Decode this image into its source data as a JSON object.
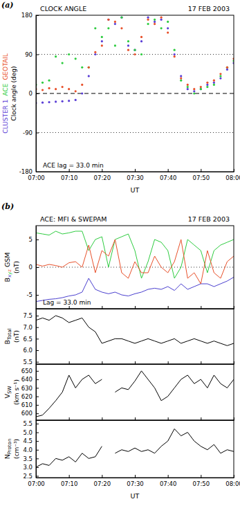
{
  "chart_data": [
    {
      "type": "scatter",
      "panel_label": "(a)",
      "title": "CLOCK ANGLE",
      "subtitle": "17 FEB 2003",
      "ylabel": "Clock angle (deg)",
      "xlabel": "UT",
      "legend": "left",
      "grid": true,
      "annotations": [
        "ACE lag = 33.0 min"
      ],
      "x": [
        0,
        2,
        4,
        6,
        8,
        10,
        12,
        14,
        16,
        18,
        20,
        22,
        24,
        26,
        28,
        30,
        32,
        34,
        36,
        38,
        40,
        42,
        44,
        46,
        48,
        50,
        52,
        54,
        56,
        58,
        60
      ],
      "xlim": [
        0,
        60
      ],
      "xticks": [
        {
          "value": 0,
          "label": "07:00"
        },
        {
          "value": 10,
          "label": "07:10"
        },
        {
          "value": 20,
          "label": "07:20"
        },
        {
          "value": 30,
          "label": "07:30"
        },
        {
          "value": 40,
          "label": "07:40"
        },
        {
          "value": 50,
          "label": "07:50"
        },
        {
          "value": 60,
          "label": "08:00"
        }
      ],
      "ylim": [
        -180,
        180
      ],
      "yticks": [
        -180,
        -90,
        0,
        90,
        180
      ],
      "series": [
        {
          "name": "CLUSTER 1",
          "color": "#5b3fd6",
          "marker": "dot",
          "values": [
            -22,
            -21,
            -20,
            -19,
            -18,
            -17,
            -15,
            0,
            40,
            90,
            120,
            170,
            160,
            175,
            110,
            100,
            120,
            175,
            165,
            170,
            150,
            90,
            40,
            10,
            5,
            10,
            20,
            25,
            35,
            55,
            70
          ]
        },
        {
          "name": "ACE",
          "color": "#2ecc40",
          "marker": "dot",
          "values": [
            20,
            25,
            30,
            85,
            70,
            90,
            80,
            60,
            60,
            150,
            130,
            150,
            110,
            175,
            120,
            100,
            90,
            160,
            170,
            150,
            165,
            100,
            30,
            15,
            0,
            10,
            15,
            20,
            40,
            60,
            75
          ]
        },
        {
          "name": "GEOTAIL",
          "color": "#e8502a",
          "marker": "dot",
          "values": [
            10,
            8,
            12,
            10,
            15,
            10,
            5,
            20,
            60,
            95,
            110,
            170,
            165,
            150,
            100,
            90,
            130,
            170,
            160,
            175,
            140,
            85,
            35,
            20,
            10,
            15,
            25,
            30,
            45,
            60,
            80
          ]
        }
      ]
    },
    {
      "type": "line",
      "panel_label": "(b)",
      "title": "ACE: MFI & SWEPAM",
      "subtitle": "17 FEB 2003",
      "ylabel": {
        "symbol": "B",
        "suffix": "GSM",
        "unit": "(nT)"
      },
      "tick_labels": "y",
      "annotations": [
        "Lag = 33.0 min"
      ],
      "x": [
        0,
        2,
        4,
        6,
        8,
        10,
        12,
        14,
        16,
        18,
        20,
        22,
        24,
        26,
        28,
        30,
        32,
        34,
        36,
        38,
        40,
        42,
        44,
        46,
        48,
        50,
        52,
        54,
        56,
        58,
        60
      ],
      "xlim": [
        0,
        60
      ],
      "xticks": [
        {
          "value": 0,
          "label": "07:00"
        },
        {
          "value": 10,
          "label": "07:10"
        },
        {
          "value": 20,
          "label": "07:20"
        },
        {
          "value": 30,
          "label": "07:30"
        },
        {
          "value": 40,
          "label": "07:40"
        },
        {
          "value": 50,
          "label": "07:50"
        },
        {
          "value": 60,
          "label": "08:00"
        }
      ],
      "ylim": [
        -7.5,
        7.5
      ],
      "yticks": [
        -5,
        0,
        5
      ],
      "series": [
        {
          "name": "x",
          "color": "#4a3fcf",
          "values": [
            -6.2,
            -6,
            -5.8,
            -5.7,
            -5.5,
            -5.2,
            -5,
            -4.5,
            -2,
            -4,
            -4.5,
            -4.8,
            -4.5,
            -5,
            -5.2,
            -4.8,
            -4.5,
            -4,
            -3.8,
            -4,
            -3.5,
            -4.2,
            -3,
            -4,
            -3.5,
            -3,
            -3,
            -3.5,
            -3,
            -2.5,
            -1.8
          ]
        },
        {
          "name": "y",
          "color": "#2ecc40",
          "values": [
            6.2,
            6,
            5.8,
            6.5,
            6,
            6.2,
            6.5,
            6.5,
            3,
            5,
            5.5,
            0,
            5,
            5.5,
            6,
            3,
            -2,
            1,
            5,
            4.5,
            3,
            -2,
            0,
            5,
            4,
            3,
            -1,
            3,
            4,
            4.5,
            5
          ]
        },
        {
          "name": "z",
          "color": "#e8502a",
          "values": [
            0.5,
            0.2,
            0.5,
            0.3,
            0,
            0.8,
            1,
            0,
            4,
            -1,
            3,
            2,
            5,
            -1,
            -2,
            1,
            -1,
            -1,
            2,
            0,
            -1,
            1,
            5,
            -2,
            -1,
            -3,
            3,
            -1,
            -2,
            1,
            2
          ]
        }
      ]
    },
    {
      "type": "line",
      "ylabel": {
        "symbol": "B",
        "sub": "Total",
        "unit": "(nT)"
      },
      "tick_labels": "y",
      "x": [
        0,
        2,
        4,
        6,
        8,
        10,
        12,
        14,
        16,
        18,
        20,
        22,
        24,
        26,
        28,
        30,
        32,
        34,
        36,
        38,
        40,
        42,
        44,
        46,
        48,
        50,
        52,
        54,
        56,
        58,
        60
      ],
      "xlim": [
        0,
        60
      ],
      "xticks": [
        {
          "value": 0,
          "label": "07:00"
        },
        {
          "value": 10,
          "label": "07:10"
        },
        {
          "value": 20,
          "label": "07:20"
        },
        {
          "value": 30,
          "label": "07:30"
        },
        {
          "value": 40,
          "label": "07:40"
        },
        {
          "value": 50,
          "label": "07:50"
        },
        {
          "value": 60,
          "label": "08:00"
        }
      ],
      "ylim": [
        5.4,
        7.8
      ],
      "yticks": [
        5.5,
        {
          "value": 6,
          "label": "6.0"
        },
        6.5,
        {
          "value": 7,
          "label": "7.0"
        },
        7.5
      ],
      "series": [
        {
          "color": "#000000",
          "values": [
            7.3,
            7.4,
            7.3,
            7.5,
            7.4,
            7.2,
            7.3,
            7.4,
            7.0,
            6.8,
            6.3,
            6.4,
            6.5,
            6.5,
            6.4,
            6.3,
            6.4,
            6.5,
            6.4,
            6.3,
            6.4,
            6.5,
            6.3,
            6.4,
            6.5,
            6.4,
            6.3,
            6.4,
            6.3,
            6.2,
            6.3
          ]
        }
      ]
    },
    {
      "type": "line",
      "ylabel": {
        "symbol": "V",
        "sub": "SW",
        "unit": "(km s⁻¹)"
      },
      "tick_labels": "y",
      "x": [
        0,
        2,
        4,
        6,
        8,
        10,
        12,
        14,
        16,
        18,
        20,
        22,
        24,
        26,
        28,
        30,
        32,
        34,
        36,
        38,
        40,
        42,
        44,
        46,
        48,
        50,
        52,
        54,
        56,
        58,
        60
      ],
      "xlim": [
        0,
        60
      ],
      "xticks": [
        {
          "value": 0,
          "label": "07:00"
        },
        {
          "value": 10,
          "label": "07:10"
        },
        {
          "value": 20,
          "label": "07:20"
        },
        {
          "value": 30,
          "label": "07:30"
        },
        {
          "value": 40,
          "label": "07:40"
        },
        {
          "value": 50,
          "label": "07:50"
        },
        {
          "value": 60,
          "label": "08:00"
        }
      ],
      "ylim": [
        592,
        658
      ],
      "yticks": [
        600,
        610,
        620,
        630,
        640,
        650
      ],
      "series": [
        {
          "color": "#000000",
          "values": [
            596,
            598,
            606,
            615,
            625,
            645,
            630,
            640,
            645,
            635,
            640,
            null,
            625,
            630,
            628,
            638,
            650,
            640,
            630,
            615,
            620,
            630,
            640,
            645,
            635,
            640,
            630,
            645,
            635,
            630,
            640
          ]
        }
      ]
    },
    {
      "type": "line",
      "ylabel": {
        "symbol": "N",
        "sub": "Proton",
        "unit": "(cm⁻³)"
      },
      "xlabel": "UT",
      "x": [
        0,
        2,
        4,
        6,
        8,
        10,
        12,
        14,
        16,
        18,
        20,
        22,
        24,
        26,
        28,
        30,
        32,
        34,
        36,
        38,
        40,
        42,
        44,
        46,
        48,
        50,
        52,
        54,
        56,
        58,
        60
      ],
      "xlim": [
        0,
        60
      ],
      "xticks": [
        {
          "value": 0,
          "label": "07:00"
        },
        {
          "value": 10,
          "label": "07:10"
        },
        {
          "value": 20,
          "label": "07:20"
        },
        {
          "value": 30,
          "label": "07:30"
        },
        {
          "value": 40,
          "label": "07:40"
        },
        {
          "value": 50,
          "label": "07:50"
        },
        {
          "value": 60,
          "label": "08:00"
        }
      ],
      "ylim": [
        2.4,
        5.7
      ],
      "yticks": [
        2.5,
        {
          "value": 3,
          "label": "3.0"
        },
        3.5,
        {
          "value": 4,
          "label": "4.0"
        },
        4.5,
        {
          "value": 5,
          "label": "5.0"
        },
        5.5
      ],
      "series": [
        {
          "color": "#000000",
          "values": [
            3.0,
            3.2,
            3.1,
            3.5,
            3.4,
            3.6,
            3.3,
            3.8,
            3.5,
            3.6,
            4.2,
            null,
            3.8,
            4.0,
            3.9,
            4.1,
            3.9,
            4.0,
            3.8,
            4.2,
            4.5,
            5.2,
            4.8,
            5.0,
            4.5,
            4.2,
            4.0,
            4.3,
            3.8,
            4.0,
            3.9
          ]
        }
      ]
    }
  ]
}
